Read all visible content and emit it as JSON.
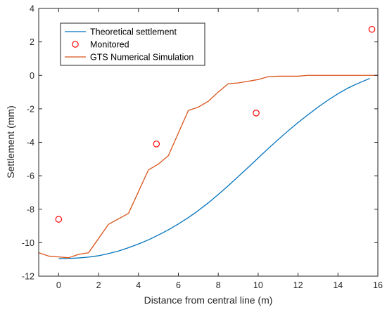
{
  "chart_data": {
    "type": "line",
    "title": "",
    "xlabel": "Distance from central line (m)",
    "ylabel": "Settlement (mm)",
    "xlim": [
      -1,
      16
    ],
    "ylim": [
      -12,
      4
    ],
    "xticks": [
      "0",
      "2",
      "4",
      "6",
      "8",
      "10",
      "12",
      "14",
      "16"
    ],
    "yticks": [
      "4",
      "2",
      "0",
      "-2",
      "-4",
      "-6",
      "-8",
      "-10",
      "-12"
    ],
    "grid": false,
    "legend_position": "top-left",
    "series": [
      {
        "name": "Theoretical settlement",
        "kind": "line",
        "color": "#0072BD",
        "x": [
          0,
          0.5,
          1,
          1.5,
          2,
          2.5,
          3,
          3.5,
          4,
          4.5,
          5,
          5.5,
          6,
          6.5,
          7,
          7.5,
          8,
          8.5,
          9,
          9.5,
          10,
          10.5,
          11,
          11.5,
          12,
          12.5,
          13,
          13.5,
          14,
          14.5,
          15,
          15.6
        ],
        "y": [
          -10.95,
          -10.94,
          -10.91,
          -10.86,
          -10.78,
          -10.65,
          -10.5,
          -10.3,
          -10.08,
          -9.83,
          -9.54,
          -9.23,
          -8.88,
          -8.5,
          -8.08,
          -7.62,
          -7.12,
          -6.6,
          -6.05,
          -5.5,
          -4.94,
          -4.38,
          -3.84,
          -3.32,
          -2.82,
          -2.35,
          -1.9,
          -1.48,
          -1.1,
          -0.76,
          -0.48,
          -0.18
        ]
      },
      {
        "name": "Monitored",
        "kind": "scatter",
        "color": "#FF0000",
        "x": [
          0,
          4.9,
          9.9,
          15.7
        ],
        "y": [
          -8.6,
          -4.1,
          -2.25,
          2.75
        ]
      },
      {
        "name": "GTS Numerical Simulation",
        "kind": "line",
        "color": "#D95319",
        "x": [
          -1,
          -0.5,
          0,
          0.5,
          1,
          1.5,
          2.5,
          3.5,
          4.5,
          5,
          5.5,
          6.5,
          7,
          7.5,
          8,
          8.5,
          9,
          9.5,
          10,
          10.5,
          11,
          12,
          12.5,
          13,
          14,
          15,
          16
        ],
        "y": [
          -10.6,
          -10.8,
          -10.85,
          -10.9,
          -10.7,
          -10.6,
          -8.9,
          -8.25,
          -5.65,
          -5.3,
          -4.8,
          -2.1,
          -1.9,
          -1.55,
          -1.0,
          -0.5,
          -0.45,
          -0.35,
          -0.25,
          -0.08,
          -0.05,
          -0.05,
          0,
          0,
          0,
          0,
          0
        ]
      }
    ]
  }
}
